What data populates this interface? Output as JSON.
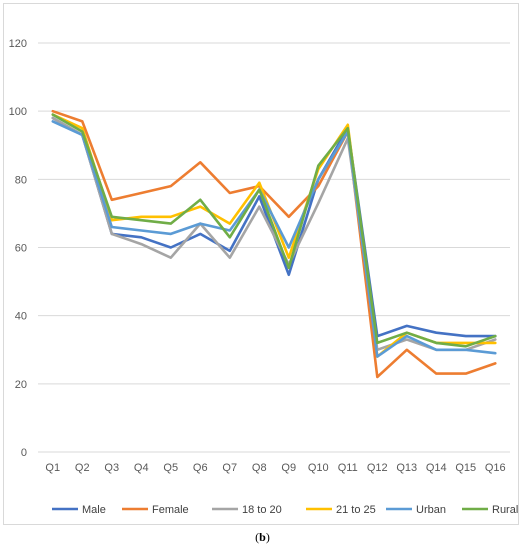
{
  "caption": {
    "open": "(",
    "label": "b",
    "close": ")"
  },
  "chart_data": {
    "type": "line",
    "categories": [
      "Q1",
      "Q2",
      "Q3",
      "Q4",
      "Q5",
      "Q6",
      "Q7",
      "Q8",
      "Q9",
      "Q10",
      "Q11",
      "Q12",
      "Q13",
      "Q14",
      "Q15",
      "Q16"
    ],
    "ylim": [
      0,
      120
    ],
    "yticks": [
      0,
      20,
      40,
      60,
      80,
      100,
      120
    ],
    "grid": true,
    "legend_position": "bottom",
    "series": [
      {
        "name": "Male",
        "color": "#4472c4",
        "values": [
          98,
          93,
          64,
          63,
          60,
          64,
          59,
          75,
          52,
          80,
          95,
          34,
          37,
          35,
          34,
          34
        ]
      },
      {
        "name": "Female",
        "color": "#ed7d31",
        "values": [
          100,
          97,
          74,
          76,
          78,
          85,
          76,
          78,
          69,
          78,
          94,
          22,
          30,
          23,
          23,
          26
        ]
      },
      {
        "name": "18 to 20",
        "color": "#a5a5a5",
        "values": [
          98,
          93,
          64,
          61,
          57,
          67,
          57,
          72,
          55,
          73,
          92,
          30,
          33,
          30,
          30,
          33
        ]
      },
      {
        "name": "21 to 25",
        "color": "#ffc000",
        "values": [
          99,
          95,
          68,
          69,
          69,
          72,
          67,
          79,
          57,
          83,
          96,
          28,
          35,
          32,
          32,
          32
        ]
      },
      {
        "name": "Urban",
        "color": "#5b9bd5",
        "values": [
          97,
          93,
          66,
          65,
          64,
          67,
          65,
          77,
          60,
          80,
          94,
          28,
          34,
          30,
          30,
          29
        ]
      },
      {
        "name": "Rural",
        "color": "#70ad47",
        "values": [
          99,
          94,
          69,
          68,
          67,
          74,
          63,
          77,
          54,
          84,
          95,
          32,
          35,
          32,
          31,
          34
        ]
      }
    ]
  }
}
